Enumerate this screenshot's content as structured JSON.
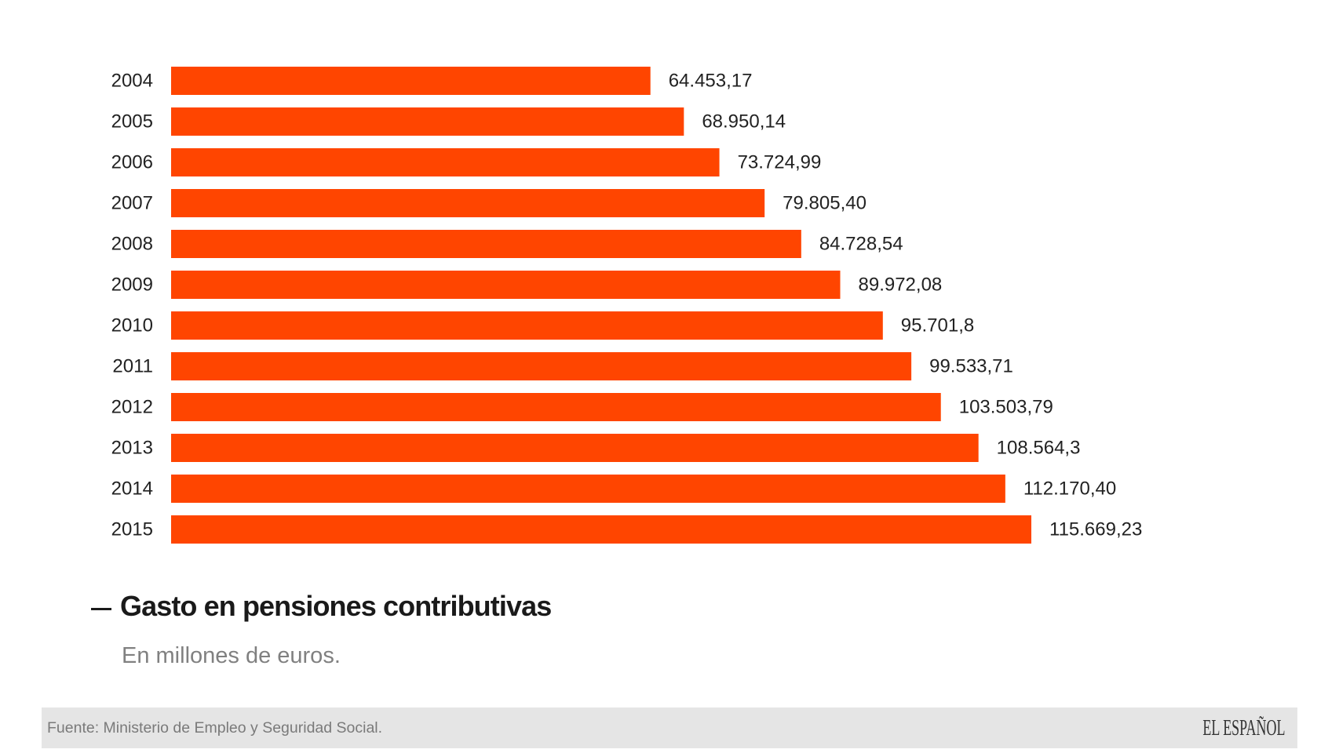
{
  "chart_data": {
    "type": "bar",
    "orientation": "horizontal",
    "title": "Gasto en pensiones contributivas",
    "subtitle": "En millones de euros.",
    "categories": [
      "2004",
      "2005",
      "2006",
      "2007",
      "2008",
      "2009",
      "2010",
      "2011",
      "2012",
      "2013",
      "2014",
      "2015"
    ],
    "values": [
      64453.17,
      68950.14,
      73724.99,
      79805.4,
      84728.54,
      89972.08,
      95701.8,
      99533.71,
      103503.79,
      108564.3,
      112170.4,
      115669.23
    ],
    "value_labels": [
      "64.453,17",
      "68.950,14",
      "73.724,99",
      "79.805,40",
      "84.728,54",
      "89.972,08",
      "95.701,8",
      "99.533,71",
      "103.503,79",
      "108.564,3",
      "112.170,40",
      "115.669,23"
    ],
    "xlabel": "",
    "ylabel": "",
    "xlim": [
      0,
      115669.23
    ],
    "grid": false,
    "legend": "none",
    "bar_color": "#ff4500"
  },
  "header": {
    "title_dash": "—",
    "title": "Gasto en pensiones contributivas",
    "subtitle": "En millones de euros."
  },
  "footer": {
    "source": "Fuente: Ministerio de Empleo y Seguridad Social.",
    "logo": "EL ESPAÑOL"
  }
}
